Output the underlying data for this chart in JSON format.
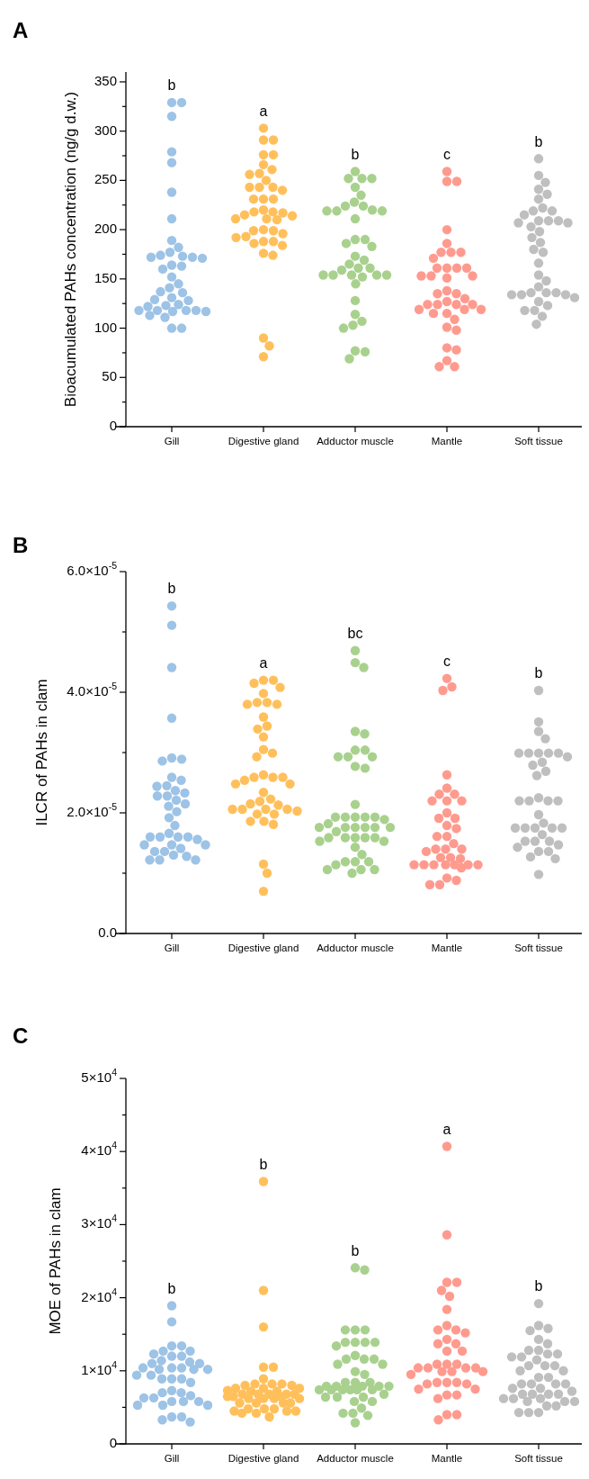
{
  "chart_data": [
    {
      "type": "scatter",
      "title": "A",
      "ylabel": "Bioacumulated PAHs concentration (ng/g d.w.)",
      "categories": [
        "Gill",
        "Digestive gland",
        "Adductor muscle",
        "Mantle",
        "Soft tissue"
      ],
      "marker": "circle",
      "ylim": [
        0,
        360
      ],
      "yticks": [
        0,
        {
          "value": 25,
          "label": null
        },
        50,
        {
          "value": 75,
          "label": null
        },
        100,
        {
          "value": 125,
          "label": null
        },
        150,
        {
          "value": 175,
          "label": null
        },
        200,
        {
          "value": 225,
          "label": null
        },
        250,
        {
          "value": 275,
          "label": null
        },
        300,
        {
          "value": 325,
          "label": null
        },
        350
      ],
      "series": [
        {
          "color": "#9dc3e6",
          "x": [
            "Gill",
            "Gill",
            "Gill",
            "Gill",
            "Gill",
            "Gill",
            "Gill",
            "Gill",
            "Gill",
            "Gill",
            "Gill",
            "Gill",
            "Gill",
            "Gill",
            "Gill",
            "Gill",
            "Gill",
            "Gill",
            "Gill",
            "Gill",
            "Gill",
            "Gill",
            "Gill",
            "Gill",
            "Gill",
            "Gill",
            "Gill",
            "Gill",
            "Gill",
            "Gill",
            "Gill",
            "Gill",
            "Gill",
            "Gill",
            "Gill",
            "Gill",
            "Gill",
            "Gill",
            "Gill"
          ],
          "values": [
            329,
            329,
            315,
            279,
            268,
            238,
            211,
            189,
            182,
            177,
            174,
            173,
            172,
            172,
            171,
            163,
            164,
            160,
            152,
            145,
            141,
            137,
            136,
            131,
            129,
            128,
            124,
            123,
            122,
            118,
            118,
            118,
            118,
            117,
            117,
            113,
            111,
            100,
            100
          ]
        },
        {
          "color": "#ffc05c",
          "x": [
            "Digestive gland",
            "Digestive gland",
            "Digestive gland",
            "Digestive gland",
            "Digestive gland",
            "Digestive gland",
            "Digestive gland",
            "Digestive gland",
            "Digestive gland",
            "Digestive gland",
            "Digestive gland",
            "Digestive gland",
            "Digestive gland",
            "Digestive gland",
            "Digestive gland",
            "Digestive gland",
            "Digestive gland",
            "Digestive gland",
            "Digestive gland",
            "Digestive gland",
            "Digestive gland",
            "Digestive gland",
            "Digestive gland",
            "Digestive gland",
            "Digestive gland",
            "Digestive gland",
            "Digestive gland",
            "Digestive gland",
            "Digestive gland",
            "Digestive gland",
            "Digestive gland",
            "Digestive gland",
            "Digestive gland",
            "Digestive gland",
            "Digestive gland",
            "Digestive gland",
            "Digestive gland",
            "Digestive gland",
            "Digestive gland",
            "Digestive gland",
            "Digestive gland"
          ],
          "values": [
            303,
            291,
            291,
            276,
            276,
            266,
            261,
            257,
            256,
            250,
            243,
            243,
            243,
            240,
            231,
            231,
            231,
            220,
            218,
            218,
            215,
            214,
            211,
            211,
            210,
            217,
            200,
            199,
            199,
            196,
            193,
            192,
            188,
            188,
            186,
            184,
            176,
            174,
            90,
            82,
            71
          ]
        },
        {
          "color": "#a9d18e",
          "x": [
            "Adductor muscle",
            "Adductor muscle",
            "Adductor muscle",
            "Adductor muscle",
            "Adductor muscle",
            "Adductor muscle",
            "Adductor muscle",
            "Adductor muscle",
            "Adductor muscle",
            "Adductor muscle",
            "Adductor muscle",
            "Adductor muscle",
            "Adductor muscle",
            "Adductor muscle",
            "Adductor muscle",
            "Adductor muscle",
            "Adductor muscle",
            "Adductor muscle",
            "Adductor muscle",
            "Adductor muscle",
            "Adductor muscle",
            "Adductor muscle",
            "Adductor muscle",
            "Adductor muscle",
            "Adductor muscle",
            "Adductor muscle",
            "Adductor muscle",
            "Adductor muscle",
            "Adductor muscle",
            "Adductor muscle",
            "Adductor muscle",
            "Adductor muscle",
            "Adductor muscle",
            "Adductor muscle",
            "Adductor muscle",
            "Adductor muscle",
            "Adductor muscle",
            "Adductor muscle",
            "Adductor muscle"
          ],
          "values": [
            259,
            252,
            252,
            252,
            243,
            235,
            228,
            224,
            224,
            220,
            219,
            219,
            219,
            211,
            190,
            190,
            186,
            183,
            173,
            169,
            165,
            161,
            161,
            159,
            154,
            154,
            154,
            154,
            154,
            152,
            145,
            128,
            114,
            107,
            103,
            100,
            77,
            76,
            69
          ]
        },
        {
          "color": "#ff9a8f",
          "x": [
            "Mantle",
            "Mantle",
            "Mantle",
            "Mantle",
            "Mantle",
            "Mantle",
            "Mantle",
            "Mantle",
            "Mantle",
            "Mantle",
            "Mantle",
            "Mantle",
            "Mantle",
            "Mantle",
            "Mantle",
            "Mantle",
            "Mantle",
            "Mantle",
            "Mantle",
            "Mantle",
            "Mantle",
            "Mantle",
            "Mantle",
            "Mantle",
            "Mantle",
            "Mantle",
            "Mantle",
            "Mantle",
            "Mantle",
            "Mantle",
            "Mantle",
            "Mantle",
            "Mantle",
            "Mantle",
            "Mantle",
            "Mantle",
            "Mantle",
            "Mantle",
            "Mantle"
          ],
          "values": [
            259,
            249,
            249,
            200,
            186,
            177,
            177,
            177,
            171,
            161,
            161,
            161,
            161,
            153,
            153,
            153,
            151,
            138,
            135,
            135,
            130,
            127,
            124,
            124,
            124,
            124,
            119,
            119,
            119,
            115,
            115,
            109,
            101,
            98,
            80,
            78,
            67,
            61,
            61
          ]
        },
        {
          "color": "#bfbfbf",
          "x": [
            "Soft tissue",
            "Soft tissue",
            "Soft tissue",
            "Soft tissue",
            "Soft tissue",
            "Soft tissue",
            "Soft tissue",
            "Soft tissue",
            "Soft tissue",
            "Soft tissue",
            "Soft tissue",
            "Soft tissue",
            "Soft tissue",
            "Soft tissue",
            "Soft tissue",
            "Soft tissue",
            "Soft tissue",
            "Soft tissue",
            "Soft tissue",
            "Soft tissue",
            "Soft tissue",
            "Soft tissue",
            "Soft tissue",
            "Soft tissue",
            "Soft tissue",
            "Soft tissue",
            "Soft tissue",
            "Soft tissue",
            "Soft tissue",
            "Soft tissue",
            "Soft tissue",
            "Soft tissue",
            "Soft tissue",
            "Soft tissue",
            "Soft tissue",
            "Soft tissue",
            "Soft tissue",
            "Soft tissue"
          ],
          "values": [
            272,
            255,
            248,
            241,
            236,
            231,
            222,
            219,
            219,
            215,
            209,
            209,
            209,
            207,
            207,
            203,
            198,
            192,
            187,
            180,
            177,
            166,
            154,
            148,
            142,
            136,
            136,
            136,
            134,
            134,
            134,
            131,
            127,
            123,
            118,
            118,
            112,
            104
          ]
        }
      ],
      "annotations": [
        "b",
        "a",
        "b",
        "c",
        "b"
      ]
    },
    {
      "type": "scatter",
      "title": "B",
      "ylabel": "ILCR of PAHs in clam",
      "categories": [
        "Gill",
        "Digestive gland",
        "Adductor muscle",
        "Mantle",
        "Soft tissue"
      ],
      "marker": "circle",
      "ylim": [
        0,
        6e-05
      ],
      "yticks": [
        {
          "value": 0,
          "label": "0.0"
        },
        {
          "value": 1e-05,
          "label": null
        },
        {
          "value": 2e-05,
          "label": "2.0×10$^{-5}$"
        },
        {
          "value": 3e-05,
          "label": null
        },
        {
          "value": 4e-05,
          "label": "4.0×10$^{-5}$"
        },
        {
          "value": 5e-05,
          "label": null
        },
        {
          "value": 6e-05,
          "label": "6.0×10$^{-5}$"
        }
      ],
      "series": [
        {
          "color": "#9dc3e6",
          "x": [
            "Gill",
            "Gill",
            "Gill",
            "Gill",
            "Gill",
            "Gill",
            "Gill",
            "Gill",
            "Gill",
            "Gill",
            "Gill",
            "Gill",
            "Gill",
            "Gill",
            "Gill",
            "Gill",
            "Gill",
            "Gill",
            "Gill",
            "Gill",
            "Gill",
            "Gill",
            "Gill",
            "Gill",
            "Gill",
            "Gill",
            "Gill",
            "Gill",
            "Gill",
            "Gill",
            "Gill",
            "Gill",
            "Gill",
            "Gill",
            "Gill",
            "Gill",
            "Gill",
            "Gill"
          ],
          "values": [
            5.43e-05,
            5.11e-05,
            4.41e-05,
            3.57e-05,
            2.91e-05,
            2.89e-05,
            2.86e-05,
            2.59e-05,
            2.54e-05,
            2.45e-05,
            2.44e-05,
            2.37e-05,
            2.33e-05,
            2.28e-05,
            2.28e-05,
            2.21e-05,
            2.15e-05,
            2.11e-05,
            2.02e-05,
            1.92e-05,
            1.79e-05,
            1.66e-05,
            1.6e-05,
            1.6e-05,
            1.6e-05,
            1.6e-05,
            1.56e-05,
            1.47e-05,
            1.47e-05,
            1.47e-05,
            1.41e-05,
            1.36e-05,
            1.36e-05,
            1.3e-05,
            1.28e-05,
            1.22e-05,
            1.22e-05,
            1.22e-05
          ]
        },
        {
          "color": "#ffc05c",
          "x": [
            "Digestive gland",
            "Digestive gland",
            "Digestive gland",
            "Digestive gland",
            "Digestive gland",
            "Digestive gland",
            "Digestive gland",
            "Digestive gland",
            "Digestive gland",
            "Digestive gland",
            "Digestive gland",
            "Digestive gland",
            "Digestive gland",
            "Digestive gland",
            "Digestive gland",
            "Digestive gland",
            "Digestive gland",
            "Digestive gland",
            "Digestive gland",
            "Digestive gland",
            "Digestive gland",
            "Digestive gland",
            "Digestive gland",
            "Digestive gland",
            "Digestive gland",
            "Digestive gland",
            "Digestive gland",
            "Digestive gland",
            "Digestive gland",
            "Digestive gland",
            "Digestive gland",
            "Digestive gland",
            "Digestive gland",
            "Digestive gland",
            "Digestive gland",
            "Digestive gland",
            "Digestive gland",
            "Digestive gland",
            "Digestive gland",
            "Digestive gland",
            "Digestive gland"
          ],
          "values": [
            4.2e-05,
            4.2e-05,
            4.15e-05,
            4.08e-05,
            3.98e-05,
            3.83e-05,
            3.83e-05,
            3.8e-05,
            3.8e-05,
            3.59e-05,
            3.44e-05,
            3.39e-05,
            3.26e-05,
            3.05e-05,
            2.99e-05,
            2.93e-05,
            2.63e-05,
            2.59e-05,
            2.59e-05,
            2.59e-05,
            2.54e-05,
            2.48e-05,
            2.48e-05,
            2.34e-05,
            2.23e-05,
            2.19e-05,
            2.15e-05,
            2.13e-05,
            2.06e-05,
            2.06e-05,
            2.06e-05,
            2.06e-05,
            2.03e-05,
            1.98e-05,
            1.98e-05,
            1.86e-05,
            1.86e-05,
            1.81e-05,
            1.15e-05,
            1e-05,
            7e-06
          ]
        },
        {
          "color": "#a9d18e",
          "x": [
            "Adductor muscle",
            "Adductor muscle",
            "Adductor muscle",
            "Adductor muscle",
            "Adductor muscle",
            "Adductor muscle",
            "Adductor muscle",
            "Adductor muscle",
            "Adductor muscle",
            "Adductor muscle",
            "Adductor muscle",
            "Adductor muscle",
            "Adductor muscle",
            "Adductor muscle",
            "Adductor muscle",
            "Adductor muscle",
            "Adductor muscle",
            "Adductor muscle",
            "Adductor muscle",
            "Adductor muscle",
            "Adductor muscle",
            "Adductor muscle",
            "Adductor muscle",
            "Adductor muscle",
            "Adductor muscle",
            "Adductor muscle",
            "Adductor muscle",
            "Adductor muscle",
            "Adductor muscle",
            "Adductor muscle",
            "Adductor muscle",
            "Adductor muscle",
            "Adductor muscle",
            "Adductor muscle",
            "Adductor muscle",
            "Adductor muscle",
            "Adductor muscle",
            "Adductor muscle",
            "Adductor muscle",
            "Adductor muscle",
            "Adductor muscle",
            "Adductor muscle",
            "Adductor muscle",
            "Adductor muscle"
          ],
          "values": [
            4.69e-05,
            4.49e-05,
            4.41e-05,
            3.35e-05,
            3.31e-05,
            3.04e-05,
            3.04e-05,
            2.93e-05,
            2.93e-05,
            2.93e-05,
            2.77e-05,
            2.74e-05,
            2.14e-05,
            1.93e-05,
            1.93e-05,
            1.93e-05,
            1.93e-05,
            1.93e-05,
            1.89e-05,
            1.82e-05,
            1.76e-05,
            1.76e-05,
            1.76e-05,
            1.76e-05,
            1.76e-05,
            1.76e-05,
            1.69e-05,
            1.59e-05,
            1.59e-05,
            1.59e-05,
            1.59e-05,
            1.59e-05,
            1.53e-05,
            1.53e-05,
            1.43e-05,
            1.31e-05,
            1.19e-05,
            1.19e-05,
            1.19e-05,
            1.14e-05,
            1.06e-05,
            1.06e-05,
            1.06e-05,
            1e-05
          ]
        },
        {
          "color": "#ff9a8f",
          "x": [
            "Mantle",
            "Mantle",
            "Mantle",
            "Mantle",
            "Mantle",
            "Mantle",
            "Mantle",
            "Mantle",
            "Mantle",
            "Mantle",
            "Mantle",
            "Mantle",
            "Mantle",
            "Mantle",
            "Mantle",
            "Mantle",
            "Mantle",
            "Mantle",
            "Mantle",
            "Mantle",
            "Mantle",
            "Mantle",
            "Mantle",
            "Mantle",
            "Mantle",
            "Mantle",
            "Mantle",
            "Mantle",
            "Mantle",
            "Mantle",
            "Mantle",
            "Mantle",
            "Mantle",
            "Mantle",
            "Mantle",
            "Mantle",
            "Mantle"
          ],
          "values": [
            4.23e-05,
            4.09e-05,
            4.03e-05,
            2.63e-05,
            2.41e-05,
            2.31e-05,
            2.31e-05,
            2.2e-05,
            2.2e-05,
            2.2e-05,
            2e-05,
            1.91e-05,
            1.91e-05,
            1.79e-05,
            1.74e-05,
            1.61e-05,
            1.61e-05,
            1.49e-05,
            1.4e-05,
            1.4e-05,
            1.4e-05,
            1.36e-05,
            1.26e-05,
            1.26e-05,
            1.24e-05,
            1.14e-05,
            1.14e-05,
            1.14e-05,
            1.14e-05,
            1.14e-05,
            1.14e-05,
            1.14e-05,
            1.09e-05,
            9.2e-06,
            8.8e-06,
            8.1e-06,
            8.1e-06
          ]
        },
        {
          "color": "#bfbfbf",
          "x": [
            "Soft tissue",
            "Soft tissue",
            "Soft tissue",
            "Soft tissue",
            "Soft tissue",
            "Soft tissue",
            "Soft tissue",
            "Soft tissue",
            "Soft tissue",
            "Soft tissue",
            "Soft tissue",
            "Soft tissue",
            "Soft tissue",
            "Soft tissue",
            "Soft tissue",
            "Soft tissue",
            "Soft tissue",
            "Soft tissue",
            "Soft tissue",
            "Soft tissue",
            "Soft tissue",
            "Soft tissue",
            "Soft tissue",
            "Soft tissue",
            "Soft tissue",
            "Soft tissue",
            "Soft tissue",
            "Soft tissue",
            "Soft tissue",
            "Soft tissue",
            "Soft tissue",
            "Soft tissue",
            "Soft tissue",
            "Soft tissue",
            "Soft tissue",
            "Soft tissue",
            "Soft tissue"
          ],
          "values": [
            4.03e-05,
            3.51e-05,
            3.35e-05,
            3.23e-05,
            2.99e-05,
            2.99e-05,
            2.99e-05,
            2.99e-05,
            2.99e-05,
            2.93e-05,
            2.84e-05,
            2.79e-05,
            2.69e-05,
            2.62e-05,
            2.25e-05,
            2.2e-05,
            2.2e-05,
            2.2e-05,
            2.2e-05,
            1.97e-05,
            1.83e-05,
            1.75e-05,
            1.75e-05,
            1.75e-05,
            1.75e-05,
            1.75e-05,
            1.64e-05,
            1.53e-05,
            1.53e-05,
            1.53e-05,
            1.47e-05,
            1.43e-05,
            1.36e-05,
            1.36e-05,
            1.27e-05,
            1.24e-05,
            9.8e-06
          ]
        }
      ],
      "annotations": [
        "b",
        "a",
        "bc",
        "c",
        "b"
      ]
    },
    {
      "type": "scatter",
      "title": "C",
      "ylabel": "MOE of PAHs in clam",
      "categories": [
        "Gill",
        "Digestive gland",
        "Adductor muscle",
        "Mantle",
        "Soft tissue"
      ],
      "marker": "circle",
      "ylim": [
        0,
        50000
      ],
      "yticks": [
        0,
        {
          "value": 5000,
          "label": null
        },
        {
          "value": 10000,
          "label": "1×10$^{4}$"
        },
        {
          "value": 15000,
          "label": null
        },
        {
          "value": 20000,
          "label": "2×10$^{4}$"
        },
        {
          "value": 25000,
          "label": null
        },
        {
          "value": 30000,
          "label": "3×10$^{4}$"
        },
        {
          "value": 35000,
          "label": null
        },
        {
          "value": 40000,
          "label": "4×10$^{4}$"
        },
        {
          "value": 45000,
          "label": null
        },
        {
          "value": 50000,
          "label": "5×10$^{4}$"
        }
      ],
      "series": [
        {
          "color": "#9dc3e6",
          "x": [
            "Gill",
            "Gill",
            "Gill",
            "Gill",
            "Gill",
            "Gill",
            "Gill",
            "Gill",
            "Gill",
            "Gill",
            "Gill",
            "Gill",
            "Gill",
            "Gill",
            "Gill",
            "Gill",
            "Gill",
            "Gill",
            "Gill",
            "Gill",
            "Gill",
            "Gill",
            "Gill",
            "Gill",
            "Gill",
            "Gill",
            "Gill",
            "Gill",
            "Gill",
            "Gill",
            "Gill",
            "Gill",
            "Gill",
            "Gill",
            "Gill",
            "Gill",
            "Gill",
            "Gill",
            "Gill",
            "Gill",
            "Gill"
          ],
          "values": [
            18900,
            16700,
            13400,
            13400,
            12700,
            12700,
            12300,
            12000,
            12000,
            11400,
            11200,
            11000,
            11000,
            10400,
            10400,
            10400,
            10200,
            10200,
            10200,
            9400,
            9400,
            8900,
            8900,
            8900,
            8400,
            7300,
            7000,
            7000,
            6600,
            6300,
            6300,
            5800,
            5800,
            5800,
            5300,
            5300,
            5300,
            3700,
            3700,
            3300,
            3000
          ]
        },
        {
          "color": "#ffc05c",
          "x": [
            "Digestive gland",
            "Digestive gland",
            "Digestive gland",
            "Digestive gland",
            "Digestive gland",
            "Digestive gland",
            "Digestive gland",
            "Digestive gland",
            "Digestive gland",
            "Digestive gland",
            "Digestive gland",
            "Digestive gland",
            "Digestive gland",
            "Digestive gland",
            "Digestive gland",
            "Digestive gland",
            "Digestive gland",
            "Digestive gland",
            "Digestive gland",
            "Digestive gland",
            "Digestive gland",
            "Digestive gland",
            "Digestive gland",
            "Digestive gland",
            "Digestive gland",
            "Digestive gland",
            "Digestive gland",
            "Digestive gland",
            "Digestive gland",
            "Digestive gland",
            "Digestive gland",
            "Digestive gland",
            "Digestive gland",
            "Digestive gland",
            "Digestive gland",
            "Digestive gland",
            "Digestive gland",
            "Digestive gland",
            "Digestive gland",
            "Digestive gland",
            "Digestive gland",
            "Digestive gland"
          ],
          "values": [
            35900,
            21000,
            16000,
            10500,
            10500,
            8900,
            8200,
            8200,
            8200,
            8000,
            8000,
            7600,
            7600,
            7600,
            7300,
            7200,
            7200,
            6800,
            6800,
            6800,
            6800,
            6800,
            6500,
            6500,
            6500,
            6200,
            6200,
            6200,
            6200,
            5600,
            5600,
            5600,
            5600,
            4800,
            4800,
            4800,
            4500,
            4500,
            4500,
            4200,
            4200,
            3700
          ]
        },
        {
          "color": "#a9d18e",
          "x": [
            "Adductor muscle",
            "Adductor muscle",
            "Adductor muscle",
            "Adductor muscle",
            "Adductor muscle",
            "Adductor muscle",
            "Adductor muscle",
            "Adductor muscle",
            "Adductor muscle",
            "Adductor muscle",
            "Adductor muscle",
            "Adductor muscle",
            "Adductor muscle",
            "Adductor muscle",
            "Adductor muscle",
            "Adductor muscle",
            "Adductor muscle",
            "Adductor muscle",
            "Adductor muscle",
            "Adductor muscle",
            "Adductor muscle",
            "Adductor muscle",
            "Adductor muscle",
            "Adductor muscle",
            "Adductor muscle",
            "Adductor muscle",
            "Adductor muscle",
            "Adductor muscle",
            "Adductor muscle",
            "Adductor muscle",
            "Adductor muscle",
            "Adductor muscle",
            "Adductor muscle",
            "Adductor muscle",
            "Adductor muscle",
            "Adductor muscle",
            "Adductor muscle",
            "Adductor muscle",
            "Adductor muscle",
            "Adductor muscle",
            "Adductor muscle",
            "Adductor muscle",
            "Adductor muscle"
          ],
          "values": [
            24100,
            23800,
            15600,
            15600,
            15600,
            13900,
            13900,
            13900,
            13900,
            13400,
            12100,
            11600,
            11600,
            11600,
            10900,
            10900,
            9900,
            9500,
            8400,
            8400,
            8400,
            7900,
            7900,
            7900,
            7900,
            7900,
            7400,
            7400,
            7400,
            7400,
            7400,
            7400,
            6800,
            6400,
            6400,
            6400,
            5800,
            5800,
            4900,
            4200,
            4200,
            3900,
            2900
          ]
        },
        {
          "color": "#ff9a8f",
          "x": [
            "Mantle",
            "Mantle",
            "Mantle",
            "Mantle",
            "Mantle",
            "Mantle",
            "Mantle",
            "Mantle",
            "Mantle",
            "Mantle",
            "Mantle",
            "Mantle",
            "Mantle",
            "Mantle",
            "Mantle",
            "Mantle",
            "Mantle",
            "Mantle",
            "Mantle",
            "Mantle",
            "Mantle",
            "Mantle",
            "Mantle",
            "Mantle",
            "Mantle",
            "Mantle",
            "Mantle",
            "Mantle",
            "Mantle",
            "Mantle",
            "Mantle",
            "Mantle",
            "Mantle",
            "Mantle",
            "Mantle",
            "Mantle",
            "Mantle",
            "Mantle",
            "Mantle",
            "Mantle"
          ],
          "values": [
            40700,
            28600,
            22100,
            22100,
            21000,
            20200,
            18400,
            16200,
            15600,
            15600,
            15200,
            14300,
            13700,
            13700,
            12700,
            12700,
            10900,
            10900,
            10900,
            10400,
            10400,
            10400,
            10400,
            9900,
            9900,
            9900,
            9500,
            8400,
            8400,
            8400,
            8200,
            8200,
            7500,
            7500,
            6700,
            6700,
            6200,
            4000,
            4000,
            3300
          ]
        },
        {
          "color": "#bfbfbf",
          "x": [
            "Soft tissue",
            "Soft tissue",
            "Soft tissue",
            "Soft tissue",
            "Soft tissue",
            "Soft tissue",
            "Soft tissue",
            "Soft tissue",
            "Soft tissue",
            "Soft tissue",
            "Soft tissue",
            "Soft tissue",
            "Soft tissue",
            "Soft tissue",
            "Soft tissue",
            "Soft tissue",
            "Soft tissue",
            "Soft tissue",
            "Soft tissue",
            "Soft tissue",
            "Soft tissue",
            "Soft tissue",
            "Soft tissue",
            "Soft tissue",
            "Soft tissue",
            "Soft tissue",
            "Soft tissue",
            "Soft tissue",
            "Soft tissue",
            "Soft tissue",
            "Soft tissue",
            "Soft tissue",
            "Soft tissue",
            "Soft tissue",
            "Soft tissue",
            "Soft tissue",
            "Soft tissue",
            "Soft tissue",
            "Soft tissue",
            "Soft tissue",
            "Soft tissue",
            "Soft tissue"
          ],
          "values": [
            19200,
            16200,
            15800,
            15500,
            14300,
            13700,
            12800,
            12800,
            12300,
            12300,
            11900,
            11900,
            11500,
            10700,
            10700,
            10700,
            10000,
            10000,
            9100,
            9100,
            8200,
            8200,
            8200,
            8200,
            7600,
            7600,
            7200,
            6800,
            6800,
            6800,
            6800,
            6200,
            6200,
            6200,
            5800,
            5800,
            5800,
            5200,
            5200,
            4300,
            4300,
            4300
          ]
        }
      ],
      "annotations": [
        "b",
        "b",
        "b",
        "a",
        "b"
      ]
    }
  ]
}
